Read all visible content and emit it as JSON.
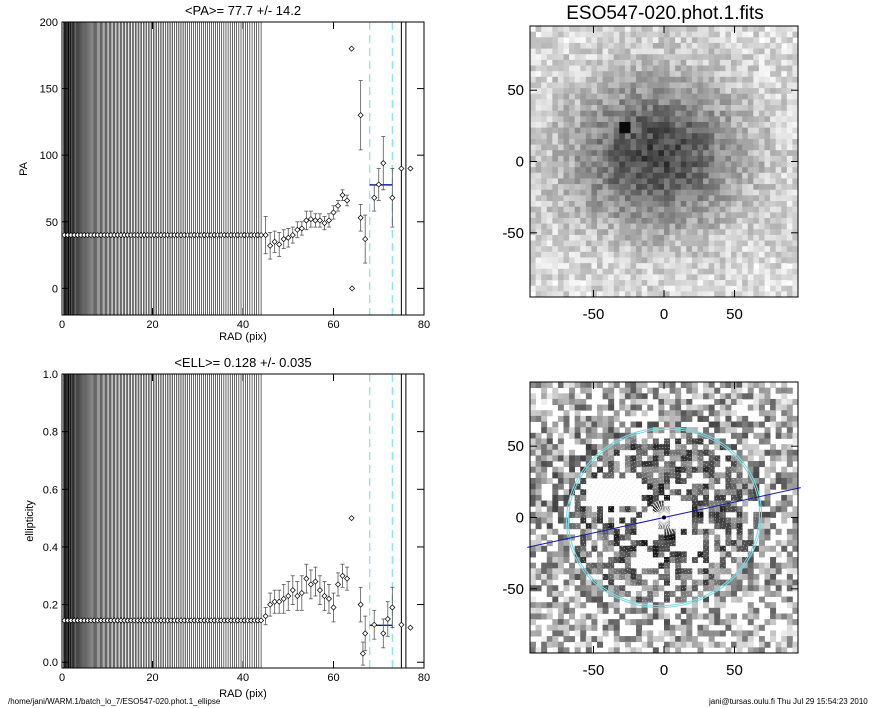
{
  "footer": {
    "path": "/home/jani/WARM.1/batch_lo_7/ESO547-020.phot.1_ellipse",
    "stamp": "jani@tursas.oulu.fi  Thu Jul 29 15:54:23 2010"
  },
  "colors": {
    "errorbar": "#555555",
    "mean": "#1a1aa0",
    "dashed": "#88e0ea",
    "ellipse": "#7fd8df"
  },
  "chart_data": [
    {
      "type": "scatter",
      "title": "<PA>=  77.7 +/-  14.2",
      "xlabel": "RAD (pix)",
      "ylabel": "PA",
      "xlim": [
        0,
        80
      ],
      "ylim": [
        -20,
        200
      ],
      "xticks": [
        0,
        20,
        40,
        60,
        80
      ],
      "yticks": [
        0,
        50,
        100,
        150,
        200
      ],
      "inner_points": {
        "x_start": 0.5,
        "x_end": 44,
        "count": 60,
        "y": 40
      },
      "points": [
        {
          "x": 45,
          "y": 40,
          "err": 14
        },
        {
          "x": 46,
          "y": 32,
          "err": 10
        },
        {
          "x": 47,
          "y": 35,
          "err": 8
        },
        {
          "x": 48,
          "y": 33,
          "err": 9
        },
        {
          "x": 49,
          "y": 37,
          "err": 7
        },
        {
          "x": 50,
          "y": 38,
          "err": 7
        },
        {
          "x": 51,
          "y": 40,
          "err": 6
        },
        {
          "x": 52,
          "y": 44,
          "err": 6
        },
        {
          "x": 53,
          "y": 45,
          "err": 5
        },
        {
          "x": 54,
          "y": 51,
          "err": 7
        },
        {
          "x": 55,
          "y": 52,
          "err": 6
        },
        {
          "x": 56,
          "y": 51,
          "err": 5
        },
        {
          "x": 57,
          "y": 51,
          "err": 5
        },
        {
          "x": 58,
          "y": 49,
          "err": 5
        },
        {
          "x": 59,
          "y": 51,
          "err": 5
        },
        {
          "x": 60,
          "y": 57,
          "err": 5
        },
        {
          "x": 61,
          "y": 62,
          "err": 4
        },
        {
          "x": 62,
          "y": 70,
          "err": 4
        },
        {
          "x": 63,
          "y": 66,
          "err": 4
        },
        {
          "x": 64,
          "y": 180,
          "err": 0
        },
        {
          "x": 64.1,
          "y": 0,
          "err": 0
        },
        {
          "x": 66,
          "y": 130,
          "err": 26
        },
        {
          "x": 66,
          "y": 53,
          "err": 10
        },
        {
          "x": 67,
          "y": 37,
          "err": 18
        },
        {
          "x": 69,
          "y": 68,
          "err": 10
        },
        {
          "x": 70,
          "y": 78,
          "err": 12
        },
        {
          "x": 71,
          "y": 94,
          "err": 20
        },
        {
          "x": 73,
          "y": 68,
          "err": 22
        },
        {
          "x": 75,
          "y": 90,
          "err": 0
        },
        {
          "x": 77,
          "y": 90,
          "err": 0
        }
      ],
      "mean": {
        "value": 77.7,
        "x_range": [
          68,
          73
        ]
      },
      "dashed_x": [
        68,
        73
      ],
      "solid_x": [
        75,
        76
      ]
    },
    {
      "type": "scatter",
      "title": "<ELL>= 0.128 +/-  0.035",
      "xlabel": "RAD (pix)",
      "ylabel": "ellipticity",
      "xlim": [
        0,
        80
      ],
      "ylim": [
        -0.02,
        1.0
      ],
      "xticks": [
        0,
        20,
        40,
        60,
        80
      ],
      "yticks": [
        0.0,
        0.2,
        0.4,
        0.6,
        0.8,
        1.0
      ],
      "inner_points": {
        "x_start": 0.5,
        "x_end": 44,
        "count": 60,
        "y": 0.145
      },
      "points": [
        {
          "x": 45,
          "y": 0.16,
          "err": 0.03
        },
        {
          "x": 46,
          "y": 0.2,
          "err": 0.04
        },
        {
          "x": 47,
          "y": 0.21,
          "err": 0.04
        },
        {
          "x": 48,
          "y": 0.21,
          "err": 0.04
        },
        {
          "x": 49,
          "y": 0.22,
          "err": 0.05
        },
        {
          "x": 50,
          "y": 0.23,
          "err": 0.05
        },
        {
          "x": 51,
          "y": 0.25,
          "err": 0.05
        },
        {
          "x": 52,
          "y": 0.23,
          "err": 0.05
        },
        {
          "x": 53,
          "y": 0.24,
          "err": 0.06
        },
        {
          "x": 54,
          "y": 0.29,
          "err": 0.05
        },
        {
          "x": 55,
          "y": 0.27,
          "err": 0.05
        },
        {
          "x": 56,
          "y": 0.28,
          "err": 0.05
        },
        {
          "x": 57,
          "y": 0.25,
          "err": 0.05
        },
        {
          "x": 58,
          "y": 0.23,
          "err": 0.05
        },
        {
          "x": 59,
          "y": 0.22,
          "err": 0.05
        },
        {
          "x": 60,
          "y": 0.19,
          "err": 0.05
        },
        {
          "x": 61,
          "y": 0.27,
          "err": 0.04
        },
        {
          "x": 62,
          "y": 0.3,
          "err": 0.04
        },
        {
          "x": 63,
          "y": 0.29,
          "err": 0.04
        },
        {
          "x": 64,
          "y": 0.5,
          "err": 0
        },
        {
          "x": 66,
          "y": 0.2,
          "err": 0.06
        },
        {
          "x": 66.5,
          "y": 0.03,
          "err": 0.04
        },
        {
          "x": 67,
          "y": 0.1,
          "err": 0.06
        },
        {
          "x": 69,
          "y": 0.13,
          "err": 0.05
        },
        {
          "x": 71,
          "y": 0.1,
          "err": 0.05
        },
        {
          "x": 72,
          "y": 0.15,
          "err": 0.06
        },
        {
          "x": 73,
          "y": 0.19,
          "err": 0.07
        },
        {
          "x": 75,
          "y": 0.13,
          "err": 0
        },
        {
          "x": 77,
          "y": 0.12,
          "err": 0
        }
      ],
      "mean": {
        "value": 0.128,
        "x_range": [
          68,
          73
        ]
      },
      "dashed_x": [
        68,
        73
      ],
      "solid_x": [
        75,
        76
      ]
    },
    {
      "type": "heatmap",
      "title": "ESO547-020.phot.1.fits",
      "xlim": [
        -95,
        95
      ],
      "ylim": [
        -95,
        95
      ],
      "xticks": [
        -50,
        0,
        50
      ],
      "yticks": [
        -50,
        0,
        50
      ]
    },
    {
      "type": "heatmap",
      "title": "",
      "xlim": [
        -95,
        95
      ],
      "ylim": [
        -95,
        95
      ],
      "xticks": [
        -50,
        0,
        50
      ],
      "yticks": [
        -50,
        0,
        50
      ],
      "ellipse": {
        "pa": 77.7,
        "ell": 0.128,
        "radius": 68
      }
    }
  ]
}
